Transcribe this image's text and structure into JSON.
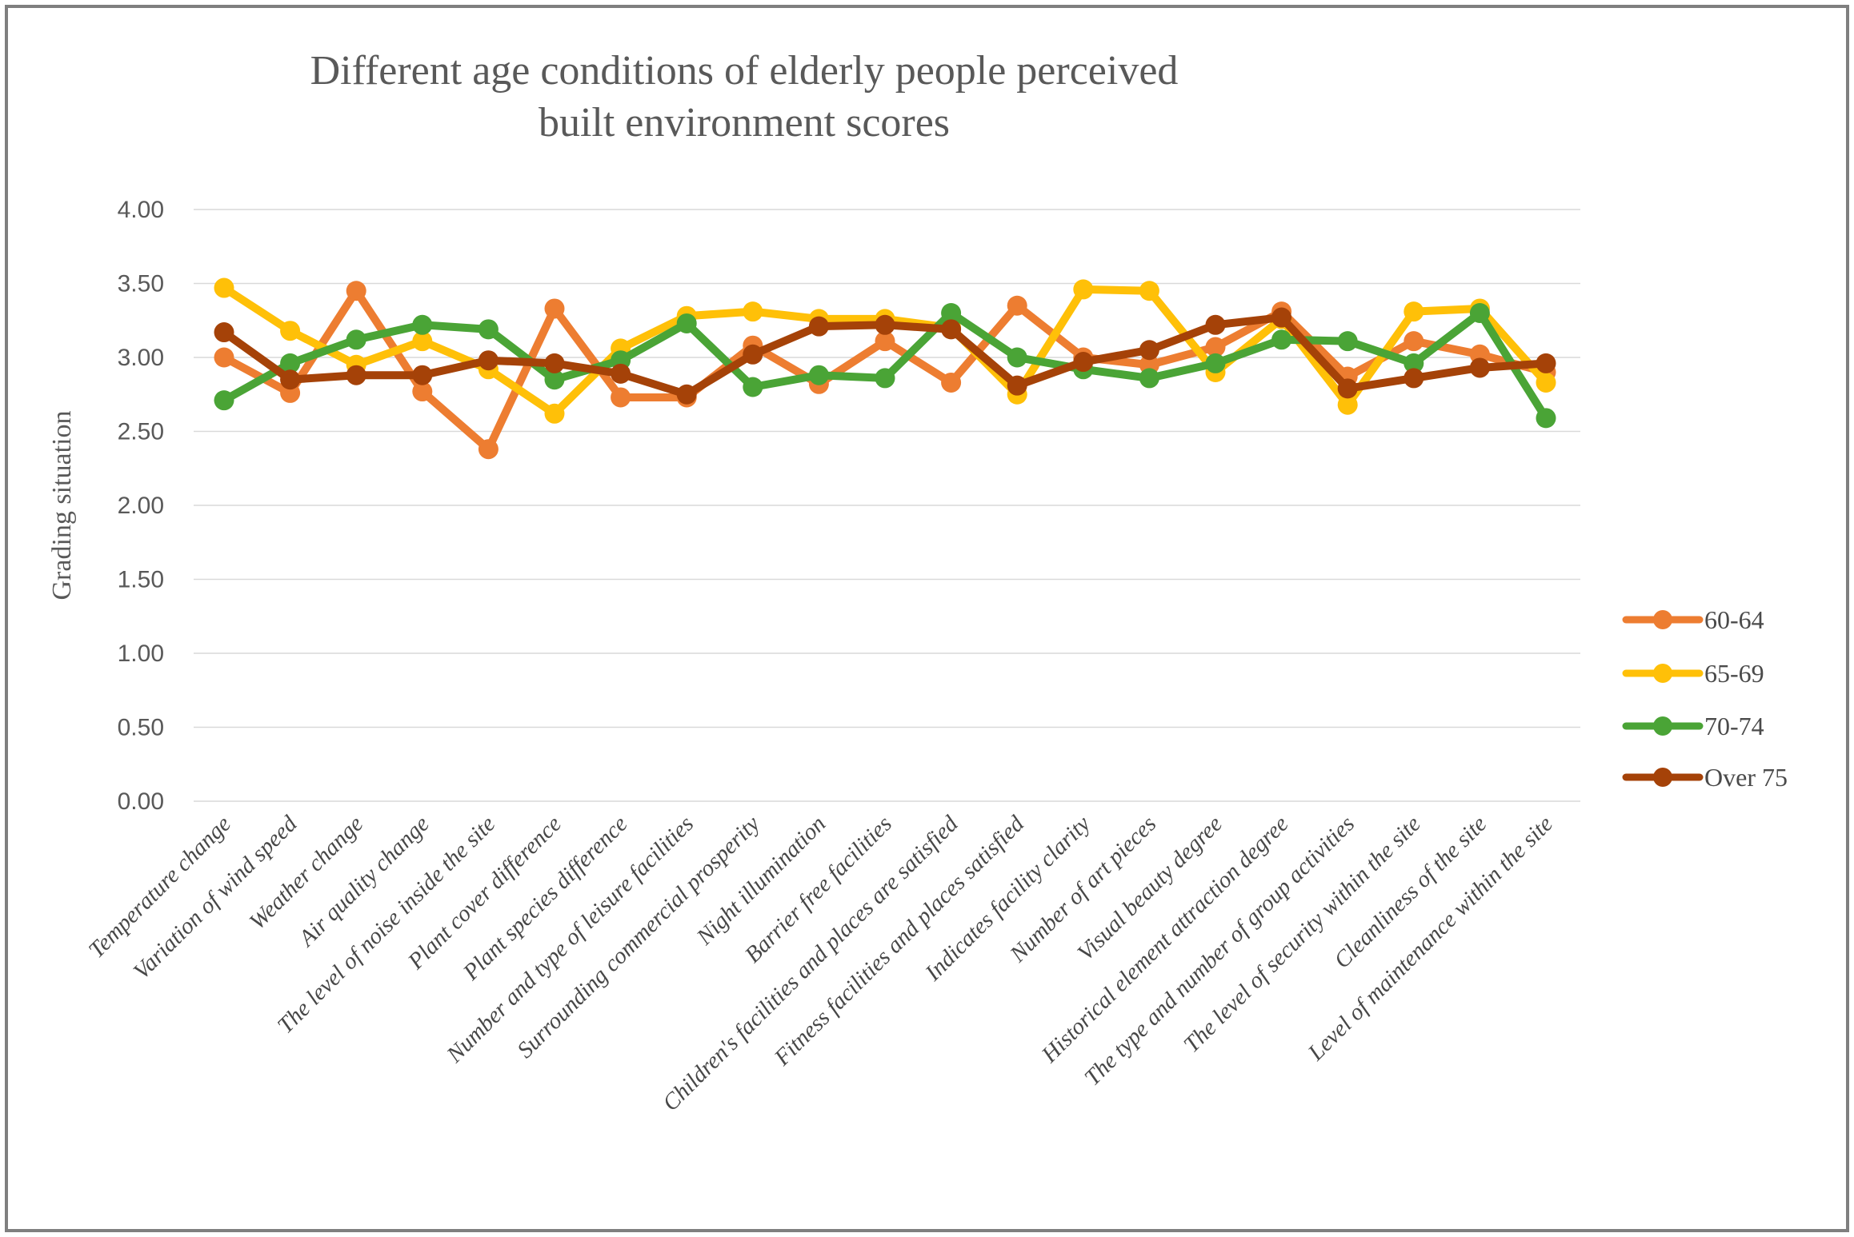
{
  "chart_data": {
    "type": "line",
    "title": "Different age conditions of elderly people perceived built environment scores",
    "title_lines": [
      "Different age conditions of elderly people perceived",
      "built environment scores"
    ],
    "ylabel": "Grading situation",
    "xlabel": "",
    "ylim": [
      0,
      4
    ],
    "ytick_step": 0.5,
    "yticks": [
      "0.00",
      "0.50",
      "1.00",
      "1.50",
      "2.00",
      "2.50",
      "3.00",
      "3.50",
      "4.00"
    ],
    "grid": true,
    "legend_position": "right",
    "text_color": "#595959",
    "gridline_color": "#d9d9d9",
    "categories": [
      "Temperature change",
      "Variation of wind speed",
      "Weather change",
      "Air quality change",
      "The level of noise inside the site",
      "Plant cover difference",
      "Plant species difference",
      "Number and type of leisure facilities",
      "Surrounding commercial prosperity",
      "Night illumination",
      "Barrier free facilities",
      "Children's facilities and places are satisfied",
      "Fitness facilities and places satisfied",
      "Indicates facility clarity",
      "Number of art pieces",
      "Visual beauty degree",
      "Historical element attraction degree",
      "The type and number of group activities",
      "The level of security within the site",
      "Cleanliness of the site",
      "Level of maintenance within the site"
    ],
    "series": [
      {
        "name": "60-64",
        "color": "#ED7D31",
        "values": [
          3.0,
          2.76,
          3.45,
          2.77,
          2.38,
          3.33,
          2.73,
          2.73,
          3.08,
          2.82,
          3.11,
          2.83,
          3.35,
          3.0,
          2.95,
          3.07,
          3.31,
          2.87,
          3.11,
          3.02,
          2.9
        ]
      },
      {
        "name": "65-69",
        "color": "#FFC008",
        "values": [
          3.47,
          3.18,
          2.95,
          3.11,
          2.92,
          2.62,
          3.06,
          3.28,
          3.31,
          3.26,
          3.26,
          3.2,
          2.75,
          3.46,
          3.45,
          2.9,
          3.26,
          2.68,
          3.31,
          3.33,
          2.83
        ]
      },
      {
        "name": "70-74",
        "color": "#4AA436",
        "values": [
          2.71,
          2.96,
          3.12,
          3.22,
          3.19,
          2.85,
          2.98,
          3.23,
          2.8,
          2.88,
          2.86,
          3.3,
          3.0,
          2.92,
          2.86,
          2.96,
          3.12,
          3.11,
          2.96,
          3.3,
          2.59
        ]
      },
      {
        "name": "Over 75",
        "color": "#A54208",
        "values": [
          3.17,
          2.85,
          2.88,
          2.88,
          2.98,
          2.96,
          2.89,
          2.75,
          3.02,
          3.21,
          3.22,
          3.19,
          2.81,
          2.97,
          3.05,
          3.22,
          3.27,
          2.79,
          2.86,
          2.93,
          2.96
        ]
      }
    ]
  }
}
